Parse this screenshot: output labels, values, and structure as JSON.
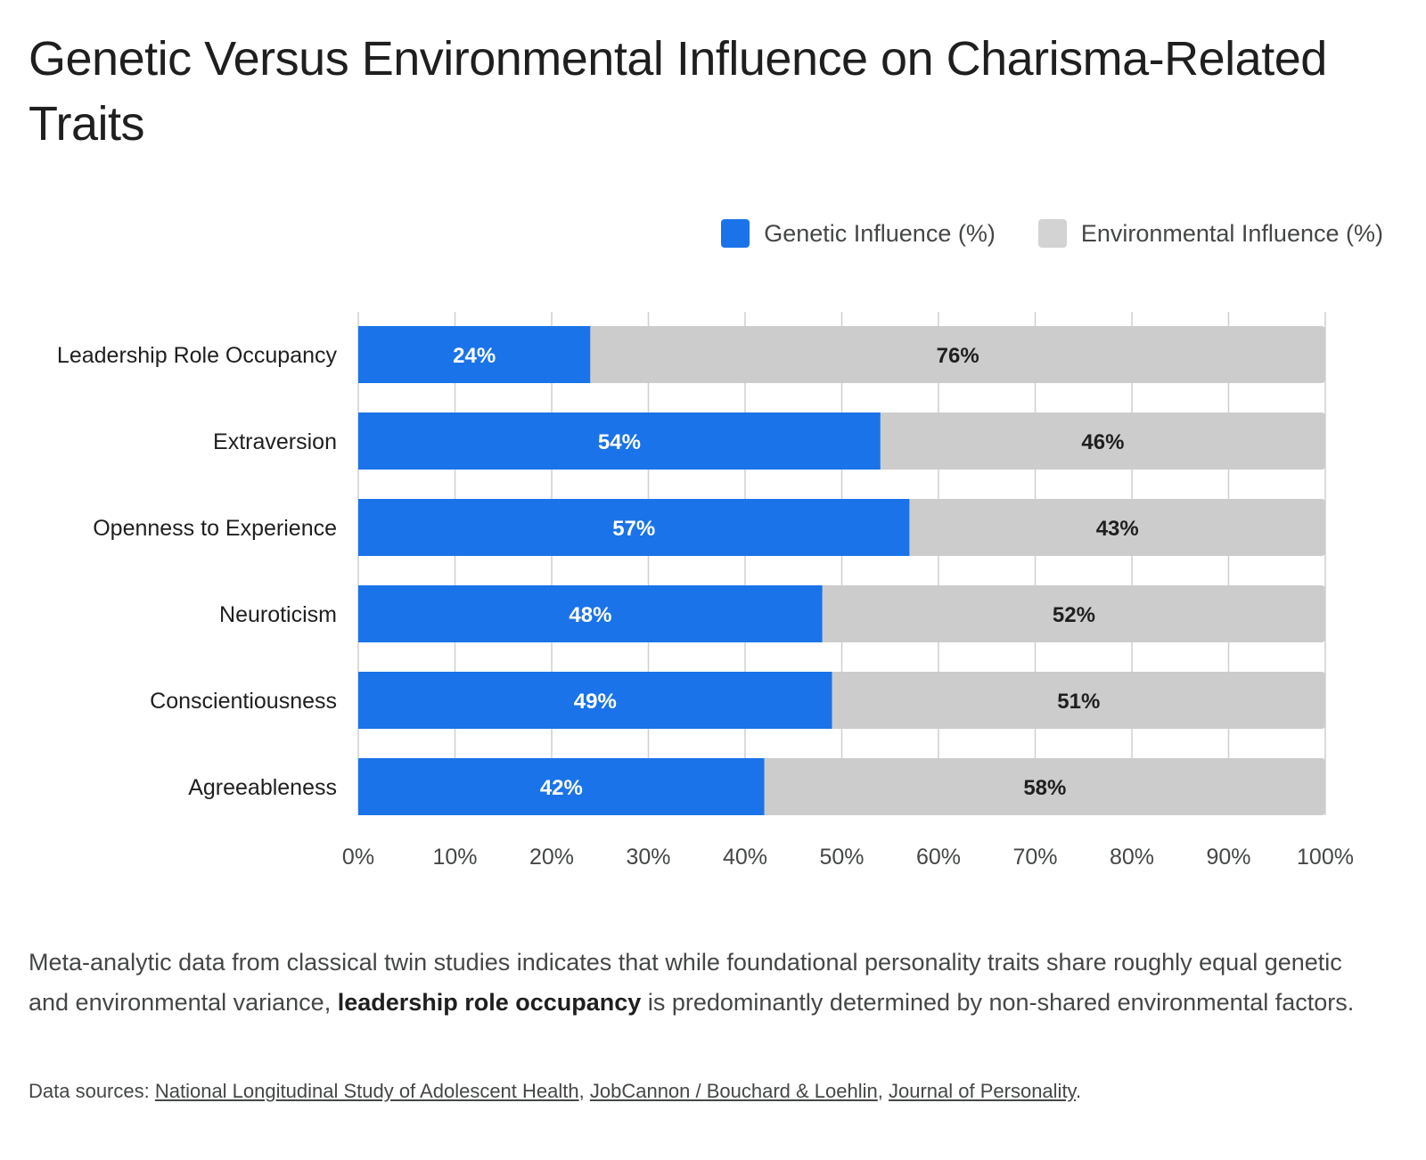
{
  "title": "Genetic Versus Environmental Influence on Charisma-Related Traits",
  "colors": {
    "genetic": "#1a73e8",
    "environmental": "#cccccc",
    "grid": "#cfcfcf"
  },
  "legend": [
    {
      "label": "Genetic Influence (%)",
      "color": "#1a73e8"
    },
    {
      "label": "Environmental Influence (%)",
      "color": "#d3d3d3"
    }
  ],
  "chart_data": {
    "type": "bar",
    "orientation": "horizontal",
    "stacked": true,
    "categories": [
      "Leadership Role Occupancy",
      "Extraversion",
      "Openness to Experience",
      "Neuroticism",
      "Conscientiousness",
      "Agreeableness"
    ],
    "series": [
      {
        "name": "Genetic Influence (%)",
        "values": [
          24,
          54,
          57,
          48,
          49,
          42
        ]
      },
      {
        "name": "Environmental Influence (%)",
        "values": [
          76,
          46,
          43,
          52,
          51,
          58
        ]
      }
    ],
    "data_labels": [
      [
        "24%",
        "54%",
        "57%",
        "48%",
        "49%",
        "42%"
      ],
      [
        "76%",
        "46%",
        "43%",
        "52%",
        "51%",
        "58%"
      ]
    ],
    "xlim": [
      0,
      100
    ],
    "xticks": [
      "0%",
      "10%",
      "20%",
      "30%",
      "40%",
      "50%",
      "60%",
      "70%",
      "80%",
      "90%",
      "100%"
    ],
    "grid": true,
    "legend_position": "top-right"
  },
  "caption": {
    "before": "Meta-analytic data from classical twin studies indicates that while foundational personality traits share roughly equal genetic and environmental variance, ",
    "bold": "leadership role occupancy",
    "after": " is predominantly determined by non-shared environmental factors."
  },
  "sources": {
    "prefix": "Data sources: ",
    "links": [
      "National Longitudinal Study of Adolescent Health",
      "JobCannon / Bouchard & Loehlin",
      "Journal of Personality"
    ],
    "sep": ", ",
    "end": "."
  }
}
